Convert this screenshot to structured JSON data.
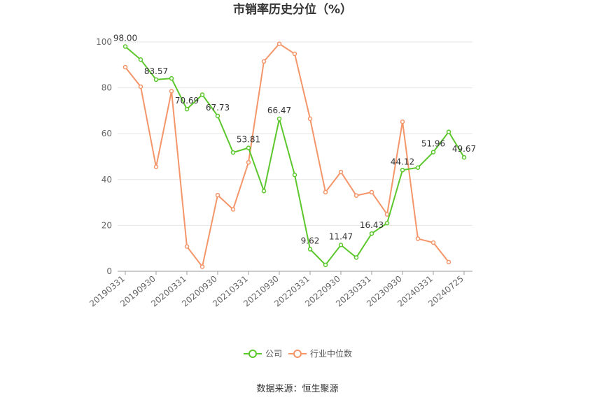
{
  "chart_data": {
    "type": "line",
    "title": "市销率历史分位（%）",
    "ylim": [
      0,
      100
    ],
    "yticks": [
      0,
      20,
      40,
      60,
      80,
      100
    ],
    "grid": true,
    "legend_placement": "bottom-center",
    "x": [
      "20190331",
      "20190630",
      "20190930",
      "20191231",
      "20200331",
      "20200630",
      "20200930",
      "20201231",
      "20210331",
      "20210630",
      "20210930",
      "20211231",
      "20220331",
      "20220630",
      "20220930",
      "20221231",
      "20230331",
      "20230630",
      "20230930",
      "20231231",
      "20240331",
      "20240630",
      "20240725"
    ],
    "xtick_labels": [
      "20190331",
      "20190930",
      "20200331",
      "20200930",
      "20210331",
      "20210930",
      "20220331",
      "20220930",
      "20230331",
      "20230930",
      "20240331",
      "20240725"
    ],
    "series": [
      {
        "name": "公司",
        "color": "#5cc72c",
        "values": [
          98.0,
          92.3,
          83.57,
          84.1,
          70.69,
          77.0,
          67.73,
          51.8,
          53.81,
          35.0,
          66.47,
          42.0,
          9.62,
          2.8,
          11.47,
          6.0,
          16.43,
          21.0,
          44.12,
          45.2,
          51.96,
          60.8,
          49.67
        ],
        "labels": {
          "0": "98.00",
          "2": "83.57",
          "4": "70.69",
          "6": "67.73",
          "8": "53.81",
          "10": "66.47",
          "12": "9.62",
          "14": "11.47",
          "16": "16.43",
          "18": "44.12",
          "20": "51.96",
          "22": "49.67"
        }
      },
      {
        "name": "行业中位数",
        "color": "#f4956a",
        "values": [
          89.0,
          80.5,
          45.5,
          78.5,
          10.8,
          2.0,
          33.2,
          27.0,
          47.5,
          91.5,
          99.2,
          94.8,
          66.5,
          34.5,
          43.3,
          33.0,
          34.5,
          24.8,
          65.2,
          14.2,
          12.5,
          4.0,
          null
        ]
      }
    ]
  },
  "source": "数据来源：恒生聚源"
}
